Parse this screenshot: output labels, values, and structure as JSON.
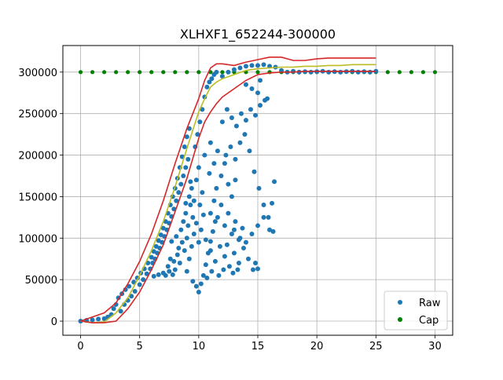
{
  "chart_data": {
    "type": "scatter",
    "title": "XLHXF1_652244-300000",
    "xlabel": "",
    "ylabel": "",
    "xlim": [
      -1.5,
      31.5
    ],
    "ylim": [
      -17000,
      332000
    ],
    "xticks": [
      0,
      5,
      10,
      15,
      20,
      25,
      30
    ],
    "yticks": [
      0,
      50000,
      100000,
      150000,
      200000,
      250000,
      300000
    ],
    "grid": true,
    "legend_placement": "lower-right",
    "legend": [
      {
        "name": "Raw",
        "color": "#1f77b4"
      },
      {
        "name": "Cap",
        "color": "#008000"
      }
    ],
    "cap": {
      "name": "Cap",
      "value": 300000,
      "x": [
        0,
        1,
        2,
        3,
        4,
        5,
        6,
        7,
        8,
        9,
        10,
        11,
        12,
        13,
        14,
        15,
        16,
        17,
        18,
        19,
        20,
        21,
        22,
        23,
        24,
        25,
        26,
        27,
        28,
        29,
        30
      ],
      "color": "#008000"
    },
    "raw": {
      "name": "Raw",
      "color": "#1f77b4",
      "points": [
        [
          0,
          0
        ],
        [
          0.5,
          1000
        ],
        [
          1,
          1500
        ],
        [
          1.5,
          2500
        ],
        [
          2,
          3000
        ],
        [
          2.3,
          5000
        ],
        [
          2.6,
          8000
        ],
        [
          2.8,
          15000
        ],
        [
          3,
          20000
        ],
        [
          3.2,
          28000
        ],
        [
          3.4,
          12000
        ],
        [
          3.5,
          33000
        ],
        [
          3.7,
          20000
        ],
        [
          3.8,
          38000
        ],
        [
          4,
          25000
        ],
        [
          4.1,
          42000
        ],
        [
          4.3,
          30000
        ],
        [
          4.5,
          47000
        ],
        [
          4.6,
          36000
        ],
        [
          4.8,
          52000
        ],
        [
          5,
          44000
        ],
        [
          5.1,
          58000
        ],
        [
          5.3,
          50000
        ],
        [
          5.4,
          63000
        ],
        [
          5.6,
          57000
        ],
        [
          5.7,
          70000
        ],
        [
          5.9,
          63000
        ],
        [
          6,
          77000
        ],
        [
          6.1,
          70000
        ],
        [
          6.2,
          84000
        ],
        [
          6.3,
          75000
        ],
        [
          6.4,
          90000
        ],
        [
          6.5,
          82000
        ],
        [
          6.6,
          97000
        ],
        [
          6.7,
          88000
        ],
        [
          6.8,
          104000
        ],
        [
          6.9,
          95000
        ],
        [
          7,
          112000
        ],
        [
          7.1,
          102000
        ],
        [
          7.2,
          120000
        ],
        [
          7.3,
          110000
        ],
        [
          7.4,
          130000
        ],
        [
          7.5,
          118000
        ],
        [
          7.6,
          140000
        ],
        [
          7.7,
          126000
        ],
        [
          7.8,
          150000
        ],
        [
          7.9,
          135000
        ],
        [
          8,
          160000
        ],
        [
          8.1,
          145000
        ],
        [
          8.2,
          172000
        ],
        [
          8.3,
          155000
        ],
        [
          8.4,
          185000
        ],
        [
          8.5,
          165000
        ],
        [
          8.6,
          198000
        ],
        [
          8.7,
          175000
        ],
        [
          8.8,
          210000
        ],
        [
          8.9,
          185000
        ],
        [
          9,
          222000
        ],
        [
          9.1,
          195000
        ],
        [
          9.2,
          232000
        ],
        [
          7.2,
          55000
        ],
        [
          7.5,
          60000
        ],
        [
          7.8,
          56000
        ],
        [
          7.6,
          75000
        ],
        [
          8,
          62000
        ],
        [
          8.2,
          80000
        ],
        [
          8.4,
          70000
        ],
        [
          8.6,
          95000
        ],
        [
          8.8,
          85000
        ],
        [
          9,
          100000
        ],
        [
          8.5,
          110000
        ],
        [
          8.7,
          120000
        ],
        [
          8.9,
          130000
        ],
        [
          9.1,
          115000
        ],
        [
          9.3,
          140000
        ],
        [
          9.5,
          125000
        ],
        [
          9.2,
          150000
        ],
        [
          9.4,
          160000
        ],
        [
          9.6,
          145000
        ],
        [
          9.8,
          170000
        ],
        [
          9,
          60000
        ],
        [
          9.2,
          75000
        ],
        [
          9.4,
          90000
        ],
        [
          9.6,
          105000
        ],
        [
          9.8,
          118000
        ],
        [
          10,
          95000
        ],
        [
          10.2,
          110000
        ],
        [
          10.4,
          128000
        ],
        [
          10.1,
          140000
        ],
        [
          10.3,
          155000
        ],
        [
          9.5,
          48000
        ],
        [
          9.8,
          42000
        ],
        [
          10,
          35000
        ],
        [
          10.2,
          45000
        ],
        [
          10.4,
          55000
        ],
        [
          10.6,
          68000
        ],
        [
          10.8,
          82000
        ],
        [
          11,
          96000
        ],
        [
          11.2,
          108000
        ],
        [
          11.4,
          120000
        ],
        [
          9.7,
          210000
        ],
        [
          9.9,
          225000
        ],
        [
          10.1,
          240000
        ],
        [
          10.3,
          255000
        ],
        [
          10.5,
          270000
        ],
        [
          10.7,
          282000
        ],
        [
          10.9,
          288000
        ],
        [
          11.1,
          292000
        ],
        [
          11.3,
          297000
        ],
        [
          11.5,
          300000
        ],
        [
          10,
          185000
        ],
        [
          10.5,
          200000
        ],
        [
          11,
          215000
        ],
        [
          11.3,
          190000
        ],
        [
          11.6,
          205000
        ],
        [
          11.9,
          175000
        ],
        [
          12.2,
          190000
        ],
        [
          12.5,
          165000
        ],
        [
          12.8,
          150000
        ],
        [
          13.1,
          170000
        ],
        [
          11,
          130000
        ],
        [
          11.3,
          145000
        ],
        [
          11.6,
          125000
        ],
        [
          11.9,
          140000
        ],
        [
          12.2,
          115000
        ],
        [
          12.5,
          130000
        ],
        [
          12.8,
          105000
        ],
        [
          13.1,
          120000
        ],
        [
          13.4,
          98000
        ],
        [
          13.7,
          112000
        ],
        [
          11,
          85000
        ],
        [
          11.4,
          72000
        ],
        [
          11.8,
          90000
        ],
        [
          12.2,
          78000
        ],
        [
          12.6,
          66000
        ],
        [
          13,
          82000
        ],
        [
          13.4,
          70000
        ],
        [
          13.8,
          88000
        ],
        [
          14.2,
          75000
        ],
        [
          14.6,
          62000
        ],
        [
          12,
          240000
        ],
        [
          12.4,
          255000
        ],
        [
          12.8,
          245000
        ],
        [
          13.2,
          235000
        ],
        [
          13.6,
          250000
        ],
        [
          14,
          242000
        ],
        [
          14.4,
          255000
        ],
        [
          14.8,
          248000
        ],
        [
          15.2,
          260000
        ],
        [
          15.6,
          266000
        ],
        [
          12,
          295000
        ],
        [
          12.5,
          300000
        ],
        [
          13,
          303000
        ],
        [
          13.5,
          305000
        ],
        [
          14,
          307000
        ],
        [
          14.5,
          308000
        ],
        [
          15,
          308000
        ],
        [
          15.5,
          309000
        ],
        [
          16,
          307000
        ],
        [
          16.5,
          306000
        ],
        [
          12.3,
          200000
        ],
        [
          12.7,
          210000
        ],
        [
          13.1,
          195000
        ],
        [
          13.5,
          215000
        ],
        [
          13.9,
          225000
        ],
        [
          14.3,
          205000
        ],
        [
          14.7,
          180000
        ],
        [
          15.1,
          160000
        ],
        [
          15.5,
          140000
        ],
        [
          15.9,
          125000
        ],
        [
          13,
          110000
        ],
        [
          13.5,
          100000
        ],
        [
          14,
          95000
        ],
        [
          14.5,
          105000
        ],
        [
          15,
          115000
        ],
        [
          15.5,
          125000
        ],
        [
          16,
          110000
        ],
        [
          16.3,
          108000
        ],
        [
          14.8,
          70000
        ],
        [
          15,
          63000
        ],
        [
          14,
          285000
        ],
        [
          14.5,
          280000
        ],
        [
          15,
          275000
        ],
        [
          15.2,
          290000
        ],
        [
          15.8,
          268000
        ],
        [
          16.2,
          142000
        ],
        [
          16.4,
          168000
        ],
        [
          17,
          302000
        ],
        [
          17.5,
          300000
        ],
        [
          18,
          301000
        ],
        [
          18.5,
          300000
        ],
        [
          19,
          300500
        ],
        [
          19.5,
          300000
        ],
        [
          20,
          300500
        ],
        [
          20.5,
          301000
        ],
        [
          21,
          300000
        ],
        [
          21.5,
          300500
        ],
        [
          22,
          300000
        ],
        [
          22.5,
          300500
        ],
        [
          23,
          301000
        ],
        [
          23.5,
          300000
        ],
        [
          24,
          300500
        ],
        [
          24.5,
          300000
        ],
        [
          25,
          301000
        ],
        [
          6.2,
          54000
        ],
        [
          6.6,
          56000
        ],
        [
          7,
          58000
        ],
        [
          7.4,
          66000
        ],
        [
          7.9,
          72000
        ],
        [
          8.3,
          88000
        ],
        [
          8.1,
          102000
        ],
        [
          7.7,
          96000
        ],
        [
          8.9,
          142000
        ],
        [
          9.3,
          168000
        ],
        [
          10.6,
          98000
        ],
        [
          11.1,
          60000
        ],
        [
          10.7,
          52000
        ],
        [
          11.7,
          55000
        ],
        [
          12.4,
          92000
        ],
        [
          12.9,
          58000
        ],
        [
          13.3,
          62000
        ],
        [
          12.1,
          62000
        ],
        [
          11.5,
          160000
        ],
        [
          10.9,
          178000
        ]
      ]
    },
    "lines": [
      {
        "name": "upper",
        "color": "#d62728",
        "x": [
          0,
          1,
          2,
          3,
          4,
          5,
          6,
          7,
          8,
          9,
          10,
          10.5,
          11,
          11.5,
          12,
          13,
          14,
          15,
          16,
          17,
          18,
          19,
          20,
          21,
          22,
          23,
          24,
          25
        ],
        "y": [
          0,
          5000,
          10000,
          22000,
          45000,
          72000,
          105000,
          145000,
          190000,
          232000,
          268000,
          290000,
          305000,
          310000,
          310000,
          308000,
          312000,
          315000,
          318000,
          318000,
          314000,
          314000,
          316000,
          317000,
          317000,
          317000,
          317000,
          317000
        ]
      },
      {
        "name": "mean",
        "color": "#bcbd22",
        "x": [
          0,
          1,
          2,
          3,
          4,
          5,
          6,
          7,
          8,
          9,
          10,
          10.5,
          11,
          11.5,
          12,
          13,
          14,
          15,
          16,
          17,
          18,
          19,
          20,
          21,
          22,
          23,
          24,
          25
        ],
        "y": [
          0,
          -2000,
          -1000,
          10000,
          28000,
          55000,
          85000,
          120000,
          162000,
          208000,
          252000,
          268000,
          282000,
          288000,
          292000,
          297000,
          302000,
          304000,
          305000,
          306000,
          306000,
          307000,
          307000,
          308000,
          308000,
          309000,
          309000,
          309000
        ]
      },
      {
        "name": "lower",
        "color": "#d62728",
        "x": [
          0,
          1,
          2,
          3,
          4,
          5,
          6,
          7,
          8,
          9,
          10,
          10.5,
          11,
          11.5,
          12,
          13,
          14,
          15,
          16,
          17,
          18,
          19,
          20,
          21,
          22,
          23,
          24,
          25
        ],
        "y": [
          0,
          -2000,
          -2000,
          0,
          15000,
          35000,
          62000,
          92000,
          132000,
          172000,
          220000,
          240000,
          252000,
          262000,
          270000,
          280000,
          290000,
          297000,
          299000,
          300000,
          300000,
          301000,
          301000,
          301000,
          301000,
          301000,
          301000,
          301000
        ]
      }
    ]
  }
}
